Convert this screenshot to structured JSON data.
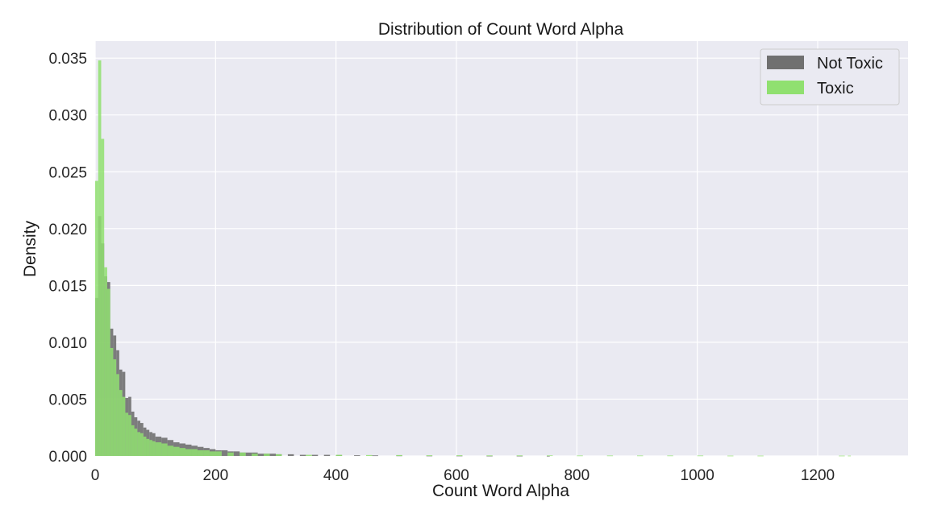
{
  "chart_data": {
    "type": "histogram",
    "title": "Distribution of Count Word Alpha",
    "xlabel": "Count Word Alpha",
    "ylabel": "Density",
    "xlim": [
      0,
      1350
    ],
    "ylim": [
      0,
      0.0365
    ],
    "x_ticks": [
      0,
      200,
      400,
      600,
      800,
      1000,
      1200
    ],
    "x_tick_labels": [
      "0",
      "200",
      "400",
      "600",
      "800",
      "1000",
      "1200"
    ],
    "y_ticks": [
      0.0,
      0.005,
      0.01,
      0.015,
      0.02,
      0.025,
      0.03,
      0.035
    ],
    "y_tick_labels": [
      "0.000",
      "0.005",
      "0.010",
      "0.015",
      "0.020",
      "0.025",
      "0.030",
      "0.035"
    ],
    "grid": true,
    "legend_position": "top-right",
    "bin_width": 5,
    "series": [
      {
        "name": "Not Toxic",
        "color": "#707070",
        "bins": [
          [
            0,
            0.0139
          ],
          [
            5,
            0.0211
          ],
          [
            10,
            0.0187
          ],
          [
            15,
            0.0158
          ],
          [
            20,
            0.0153
          ],
          [
            25,
            0.0112
          ],
          [
            30,
            0.0106
          ],
          [
            35,
            0.0093
          ],
          [
            40,
            0.0076
          ],
          [
            45,
            0.0074
          ],
          [
            50,
            0.0051
          ],
          [
            55,
            0.0052
          ],
          [
            60,
            0.0039
          ],
          [
            65,
            0.0034
          ],
          [
            70,
            0.0031
          ],
          [
            75,
            0.0029
          ],
          [
            80,
            0.0025
          ],
          [
            85,
            0.0023
          ],
          [
            90,
            0.0021
          ],
          [
            95,
            0.002
          ],
          [
            100,
            0.0017
          ],
          [
            110,
            0.0016
          ],
          [
            120,
            0.0014
          ],
          [
            130,
            0.0012
          ],
          [
            140,
            0.0011
          ],
          [
            150,
            0.001
          ],
          [
            160,
            0.0009
          ],
          [
            170,
            0.0008
          ],
          [
            180,
            0.0007
          ],
          [
            190,
            0.0006
          ],
          [
            200,
            0.0005
          ],
          [
            210,
            0.0005
          ],
          [
            220,
            0.0004
          ],
          [
            230,
            0.0004
          ],
          [
            240,
            0.0003
          ],
          [
            250,
            0.0003
          ],
          [
            260,
            0.0003
          ],
          [
            270,
            0.0002
          ],
          [
            280,
            0.0002
          ],
          [
            290,
            0.0002
          ],
          [
            300,
            0.00015
          ],
          [
            320,
            0.00015
          ],
          [
            340,
            0.0001
          ],
          [
            360,
            0.0001
          ],
          [
            380,
            0.0001
          ],
          [
            400,
            8e-05
          ],
          [
            430,
            6e-05
          ],
          [
            460,
            5e-05
          ],
          [
            500,
            4e-05
          ],
          [
            550,
            3e-05
          ],
          [
            600,
            3e-05
          ],
          [
            650,
            2e-05
          ],
          [
            700,
            2e-05
          ],
          [
            750,
            1e-05
          ]
        ]
      },
      {
        "name": "Toxic",
        "color": "#90e070",
        "bins": [
          [
            0,
            0.0242
          ],
          [
            5,
            0.0348
          ],
          [
            10,
            0.0279
          ],
          [
            15,
            0.0166
          ],
          [
            20,
            0.0147
          ],
          [
            25,
            0.0095
          ],
          [
            30,
            0.0085
          ],
          [
            35,
            0.0072
          ],
          [
            40,
            0.0058
          ],
          [
            45,
            0.0052
          ],
          [
            50,
            0.0038
          ],
          [
            55,
            0.0036
          ],
          [
            60,
            0.0027
          ],
          [
            65,
            0.0024
          ],
          [
            70,
            0.0021
          ],
          [
            75,
            0.002
          ],
          [
            80,
            0.0017
          ],
          [
            85,
            0.0015
          ],
          [
            90,
            0.0014
          ],
          [
            95,
            0.0013
          ],
          [
            100,
            0.0012
          ],
          [
            110,
            0.0011
          ],
          [
            120,
            0.0009
          ],
          [
            130,
            0.0008
          ],
          [
            140,
            0.0007
          ],
          [
            150,
            0.0006
          ],
          [
            160,
            0.0006
          ],
          [
            170,
            0.0005
          ],
          [
            180,
            0.0005
          ],
          [
            190,
            0.0004
          ],
          [
            200,
            0.0004
          ],
          [
            220,
            0.0003
          ],
          [
            240,
            0.0003
          ],
          [
            260,
            0.0002
          ],
          [
            280,
            0.0002
          ],
          [
            300,
            0.00015
          ],
          [
            350,
            0.0001
          ],
          [
            400,
            0.0001
          ],
          [
            450,
            8e-05
          ],
          [
            500,
            8e-05
          ],
          [
            550,
            6e-05
          ],
          [
            600,
            6e-05
          ],
          [
            650,
            5e-05
          ],
          [
            700,
            5e-05
          ],
          [
            750,
            5e-05
          ],
          [
            800,
            4e-05
          ],
          [
            850,
            4e-05
          ],
          [
            900,
            4e-05
          ],
          [
            950,
            4e-05
          ],
          [
            1000,
            4e-05
          ],
          [
            1050,
            3e-05
          ],
          [
            1100,
            3e-05
          ],
          [
            1235,
            3e-05
          ],
          [
            1250,
            3e-05
          ]
        ]
      }
    ]
  }
}
